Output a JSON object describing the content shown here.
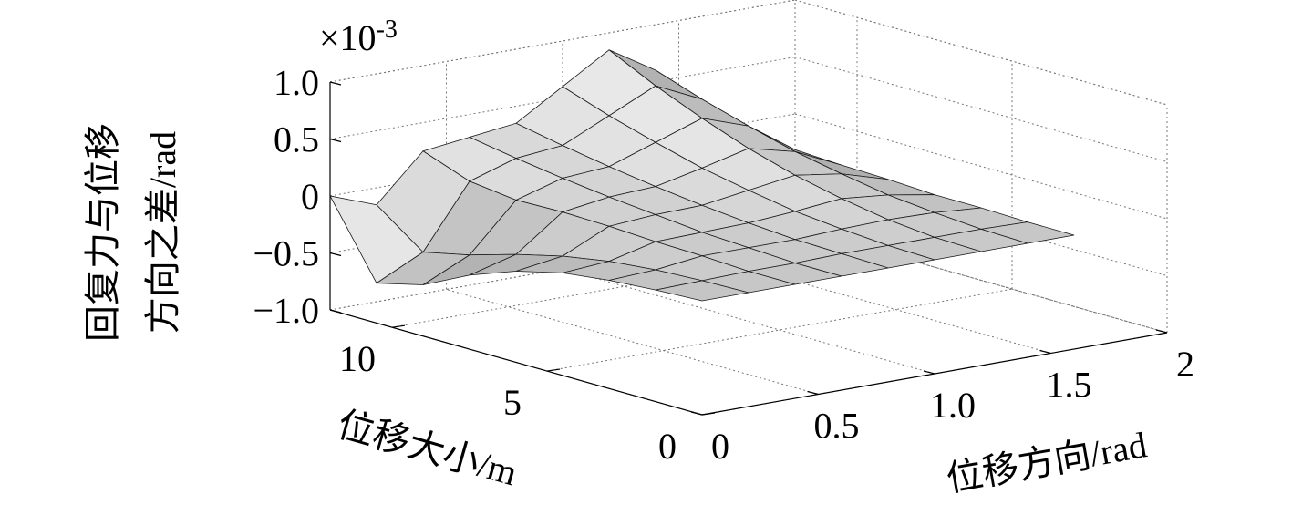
{
  "chart_data": {
    "type": "surface",
    "xlabel": "位移方向/rad",
    "ylabel": "位移大小/m",
    "zlabel": [
      "回复力与位移",
      "方向之差/rad"
    ],
    "z_multiplier": "×10",
    "z_multiplier_exponent": "-3",
    "x": [
      0,
      0.2,
      0.4,
      0.6,
      0.8,
      1.0,
      1.2,
      1.4,
      1.6
    ],
    "y": [
      0,
      1.5,
      3,
      4.5,
      6,
      7.5,
      9,
      10.5,
      12
    ],
    "z": [
      [
        0,
        0,
        0,
        0,
        0,
        0,
        0,
        0,
        0
      ],
      [
        -0.02,
        -0.01,
        0,
        0,
        0.01,
        0.01,
        0.01,
        0.01,
        0
      ],
      [
        -0.05,
        -0.03,
        0.02,
        0.02,
        0.02,
        0.04,
        0.05,
        0.04,
        0.01
      ],
      [
        -0.1,
        -0.07,
        0.03,
        0.04,
        0.05,
        0.08,
        0.12,
        0.08,
        0.01
      ],
      [
        -0.2,
        -0.14,
        0.05,
        0.08,
        0.09,
        0.15,
        0.21,
        0.15,
        0.03
      ],
      [
        -0.35,
        -0.24,
        0.06,
        0.12,
        0.14,
        0.23,
        0.33,
        0.23,
        0.04
      ],
      [
        -0.55,
        -0.36,
        0.05,
        0.17,
        0.2,
        0.34,
        0.48,
        0.34,
        0.06
      ],
      [
        -0.65,
        -0.45,
        0.1,
        0.23,
        0.27,
        0.46,
        0.65,
        0.46,
        0.08
      ],
      [
        0,
        -0.15,
        0.25,
        0.3,
        0.35,
        0.6,
        0.85,
        0.6,
        0.1
      ]
    ],
    "xlim": [
      0,
      2
    ],
    "ylim": [
      0,
      12
    ],
    "zlim": [
      -1,
      1
    ],
    "xticks": [
      0,
      0.5,
      {
        "value": 1,
        "label": "1.0"
      },
      1.5,
      2
    ],
    "yticks": [
      0,
      5,
      10
    ],
    "zticks": [
      {
        "value": -1,
        "label": "−1.0"
      },
      {
        "value": -0.5,
        "label": "−0.5"
      },
      0,
      0.5,
      {
        "value": 1,
        "label": "1.0"
      }
    ],
    "grid": true,
    "color": "#9a9a9a"
  }
}
